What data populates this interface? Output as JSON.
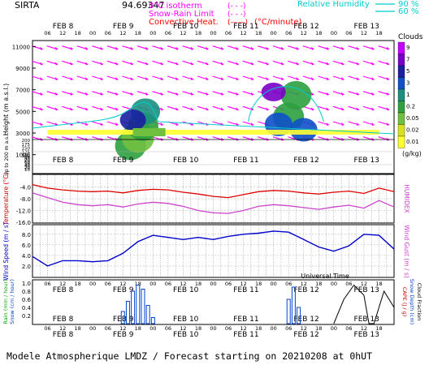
{
  "header": {
    "site": "SIRTA",
    "coords": "94.69347",
    "legend_left": [
      {
        "label": "0°C isotherm",
        "sample": "(- - -)",
        "color": "#ff00ff"
      },
      {
        "label": "Snow-Rain Limit",
        "sample": "(- - -)",
        "color": "#ff00ff"
      },
      {
        "label": "Convective Heat.",
        "sample": "(——)",
        "unit": "(°C/minute)",
        "color": "#ff0000"
      }
    ],
    "legend_right": {
      "label": "Relative Humidity",
      "values": [
        "90 %",
        "60 %"
      ],
      "color": "#00cccc"
    }
  },
  "time_axis": {
    "day_labels": [
      "FEB  8",
      "FEB  9",
      "FEB 10",
      "FEB 11",
      "FEB 12",
      "FEB 13"
    ],
    "hour_labels": [
      "06",
      "12",
      "18",
      "00"
    ],
    "xlabel": "Universal Time"
  },
  "footer": "Modele Atmospherique LMDZ / Forecast starting on 20210208 at 0hUT",
  "chart_data": [
    {
      "type": "heatmap",
      "name": "clouds",
      "ylabel": "Height  (m a.s.l.)",
      "ylabel_low": "Up to 200 m a.s.l.",
      "y_ticks_upper": [
        1000,
        3000,
        5000,
        7000,
        9000,
        11000
      ],
      "y_ticks_lower": [
        10,
        20,
        30,
        40,
        50,
        60,
        70,
        80,
        90,
        100,
        125,
        150,
        175,
        200
      ],
      "colorbar": {
        "title": "Clouds",
        "unit": "(g/kg)",
        "levels": [
          "9",
          "7",
          "5",
          "3",
          "1",
          "0.2",
          "0.05",
          "0.02",
          "0.01"
        ],
        "colors": [
          "#c400ff",
          "#7a00c8",
          "#1a20a0",
          "#1050c8",
          "#1a9080",
          "#2ea040",
          "#70c040",
          "#d8e020",
          "#ffff30"
        ]
      },
      "cloud_cells": [
        {
          "t": 39,
          "h": 1800,
          "lvl": 3
        },
        {
          "t": 42,
          "h": 2600,
          "lvl": 2
        },
        {
          "t": 44,
          "h": 3600,
          "lvl": 3
        },
        {
          "t": 45,
          "h": 5000,
          "lvl": 4
        },
        {
          "t": 40,
          "h": 4200,
          "lvl": 6
        },
        {
          "t": 102,
          "h": 4500,
          "lvl": 3
        },
        {
          "t": 105,
          "h": 6500,
          "lvl": 3
        },
        {
          "t": 98,
          "h": 3800,
          "lvl": 5
        },
        {
          "t": 108,
          "h": 3300,
          "lvl": 5
        },
        {
          "t": 96,
          "h": 6800,
          "lvl": 7
        }
      ]
    },
    {
      "type": "line",
      "name": "temperature",
      "ylabel": "Temperature  (°C)",
      "ylabel_right": "HUMIDEX",
      "y_ticks": [
        -4.0,
        -8.0,
        -12.0,
        -16.0
      ],
      "ylim": [
        -16,
        0
      ],
      "x": [
        0,
        6,
        12,
        18,
        24,
        30,
        36,
        42,
        48,
        54,
        60,
        66,
        72,
        78,
        84,
        90,
        96,
        102,
        108,
        114,
        120,
        126,
        132,
        138,
        144
      ],
      "series": [
        {
          "name": "Temperature",
          "color": "#dd0000",
          "values": [
            -3.2,
            -4.4,
            -5.0,
            -5.4,
            -5.6,
            -5.4,
            -6.0,
            -5.2,
            -4.8,
            -5.0,
            -5.8,
            -6.4,
            -7.2,
            -7.6,
            -6.6,
            -5.6,
            -5.2,
            -5.4,
            -6.0,
            -6.4,
            -5.8,
            -5.4,
            -6.2,
            -4.4,
            -5.6
          ]
        },
        {
          "name": "HUMIDEX",
          "color": "#cc44cc",
          "values": [
            -6.0,
            -7.6,
            -9.2,
            -10.0,
            -10.4,
            -10.0,
            -10.8,
            -9.8,
            -9.2,
            -9.6,
            -10.6,
            -12.0,
            -12.8,
            -13.0,
            -12.0,
            -10.6,
            -10.0,
            -10.4,
            -11.0,
            -11.6,
            -10.8,
            -10.2,
            -11.2,
            -8.6,
            -10.8
          ]
        }
      ]
    },
    {
      "type": "line",
      "name": "wind",
      "ylabel": "Wind Speed  (m / s)",
      "ylabel_right": "Wind Gust  (m / s)",
      "y_ticks": [
        2.0,
        4.0,
        6.0,
        8.0
      ],
      "ylim": [
        0,
        9.5
      ],
      "x": [
        0,
        6,
        12,
        18,
        24,
        30,
        36,
        42,
        48,
        54,
        60,
        66,
        72,
        78,
        84,
        90,
        96,
        102,
        108,
        114,
        120,
        126,
        132,
        138,
        144
      ],
      "series": [
        {
          "name": "Wind Speed",
          "color": "#0000cc",
          "values": [
            3.8,
            2.0,
            3.0,
            3.0,
            2.8,
            3.0,
            4.4,
            6.6,
            7.8,
            7.4,
            7.0,
            7.4,
            7.0,
            7.6,
            8.0,
            8.2,
            8.6,
            8.4,
            7.0,
            5.6,
            4.8,
            5.8,
            8.0,
            7.8,
            5.2
          ]
        }
      ]
    },
    {
      "type": "bar",
      "name": "precipitation",
      "ylabel_left": [
        "Rain  (mm / hour)",
        "Snow  (cm / hour)"
      ],
      "ylabel_right": [
        "CAPE  (J / g)",
        "Snow Depth  (cm)",
        "Cloud Fraction"
      ],
      "y_ticks": [
        0.2,
        0.4,
        0.6,
        0.8,
        1.0
      ],
      "ylim": [
        0,
        1.0
      ],
      "snow_bars": [
        {
          "x": 36,
          "value": 0.3
        },
        {
          "x": 38,
          "value": 0.55
        },
        {
          "x": 40,
          "value": 0.8
        },
        {
          "x": 42,
          "value": 0.95
        },
        {
          "x": 44,
          "value": 0.85
        },
        {
          "x": 46,
          "value": 0.45
        },
        {
          "x": 48,
          "value": 0.15
        },
        {
          "x": 102,
          "value": 0.6
        },
        {
          "x": 104,
          "value": 0.9
        },
        {
          "x": 106,
          "value": 0.4
        }
      ],
      "cloud_fraction": {
        "color": "#000000",
        "x": [
          120,
          124,
          128,
          132,
          134,
          136,
          140,
          144
        ],
        "values": [
          0.0,
          0.6,
          0.95,
          0.7,
          0.0,
          0.0,
          0.8,
          0.4
        ]
      }
    }
  ]
}
